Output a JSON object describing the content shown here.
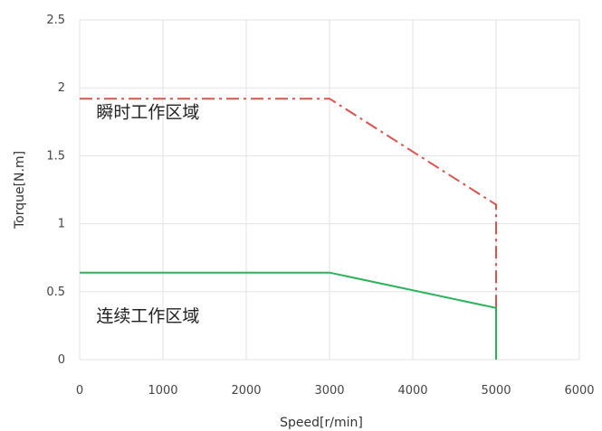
{
  "chart_data": {
    "type": "line",
    "title": "",
    "xlabel": "Speed[r/min]",
    "ylabel": "Torque[N.m]",
    "xlim": [
      0,
      6000
    ],
    "ylim": [
      0,
      2.5
    ],
    "x_ticks": [
      0,
      1000,
      2000,
      3000,
      4000,
      5000,
      6000
    ],
    "x_tick_labels": [
      "0",
      "1000",
      "2000",
      "3000",
      "4000",
      "5000",
      "6000"
    ],
    "y_ticks": [
      0,
      0.5,
      1,
      1.5,
      2,
      2.5
    ],
    "y_tick_labels": [
      "0",
      "0.5",
      "1",
      "1.5",
      "2",
      "2.5"
    ],
    "grid": true,
    "series": [
      {
        "color": "#d9534f",
        "style": "dash-dot",
        "points": [
          [
            0,
            1.92
          ],
          [
            3000,
            1.92
          ],
          [
            5000,
            1.14
          ],
          [
            5000,
            0
          ]
        ]
      },
      {
        "color": "#2bb35a",
        "style": "solid",
        "points": [
          [
            0,
            0.64
          ],
          [
            3000,
            0.64
          ],
          [
            5000,
            0.38
          ],
          [
            5000,
            0
          ]
        ]
      }
    ],
    "annotations": [
      {
        "text": "瞬时工作区域",
        "x": 200,
        "y": 1.78
      },
      {
        "text": "连续工作区域",
        "x": 200,
        "y": 0.28
      }
    ]
  }
}
